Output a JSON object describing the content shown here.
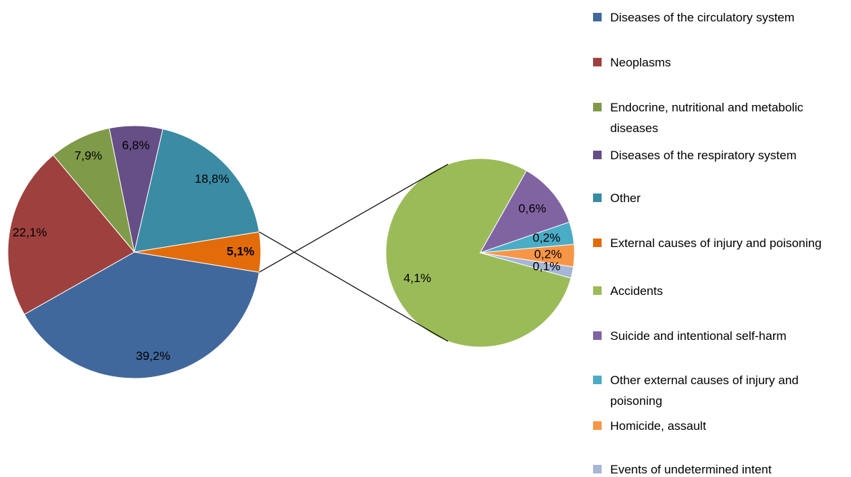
{
  "chart_data": [
    {
      "type": "pie",
      "categories": [
        "Diseases of the circulatory system",
        "Neoplasms",
        "Endocrine, nutritional and metabolic diseases",
        "Diseases of the respiratory system",
        "Other",
        "External causes of injury and poisoning"
      ],
      "values": [
        39.2,
        22.1,
        7.9,
        6.8,
        18.8,
        5.1
      ],
      "value_labels": [
        "39,2%",
        "22,1%",
        "7,9%",
        "6,8%",
        "18,8%",
        "5,1%"
      ],
      "colors": [
        "#41689c",
        "#9e413e",
        "#7f9a48",
        "#664e86",
        "#3a8ba3",
        "#e36c0a"
      ]
    },
    {
      "type": "pie",
      "categories": [
        "Accidents",
        "Suicide and intentional self-harm",
        "Other external causes of injury and poisoning",
        "Homicide, assault",
        "Events of undetermined intent"
      ],
      "values": [
        4.1,
        0.6,
        0.2,
        0.2,
        0.1
      ],
      "value_labels": [
        "4,1%",
        "0,6%",
        "0,2%",
        "0,2%",
        "0,1%"
      ],
      "colors": [
        "#9bbb59",
        "#8064a2",
        "#4bacc6",
        "#f79646",
        "#a5b6d7"
      ]
    }
  ]
}
